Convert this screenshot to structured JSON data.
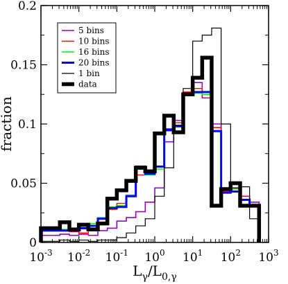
{
  "chart_data": {
    "type": "line",
    "subtype": "step-histogram",
    "xscale": "log",
    "xlim": [
      0.001,
      1000
    ],
    "ylim": [
      0,
      0.2
    ],
    "grid": false,
    "legend_position": "top-left",
    "xlabel": {
      "main": "L",
      "sub1": "γ",
      "mid": "/L",
      "sub2": "0,γ"
    },
    "ylabel": "fraction",
    "xticks": [
      {
        "value": 0.001,
        "base": "10",
        "exp": "-3"
      },
      {
        "value": 0.01,
        "base": "10",
        "exp": "-2"
      },
      {
        "value": 0.1,
        "base": "10",
        "exp": "-1"
      },
      {
        "value": 1,
        "base": "10",
        "exp": "0"
      },
      {
        "value": 10,
        "base": "10",
        "exp": "1"
      },
      {
        "value": 100,
        "base": "10",
        "exp": "2"
      },
      {
        "value": 1000,
        "base": "10",
        "exp": "3"
      }
    ],
    "yticks": [
      {
        "value": 0,
        "label": "0"
      },
      {
        "value": 0.05,
        "label": "0.05"
      },
      {
        "value": 0.1,
        "label": "0.1"
      },
      {
        "value": 0.15,
        "label": "0.15"
      },
      {
        "value": 0.2,
        "label": "0.2"
      }
    ],
    "bin_edges": [
      0.001,
      0.00178,
      0.00316,
      0.00562,
      0.01,
      0.0178,
      0.0316,
      0.0562,
      0.1,
      0.178,
      0.316,
      0.562,
      1,
      1.78,
      3.16,
      5.62,
      10,
      17.8,
      31.6,
      56.2,
      100,
      178,
      316,
      562
    ],
    "series": [
      {
        "name": "5 bins",
        "color": "#9400d3",
        "width": 1.6,
        "values": [
          0.006,
          0.006,
          0.007,
          0.006,
          0.007,
          0.006,
          0.01,
          0.012,
          0.018,
          0.021,
          0.026,
          0.034,
          0.046,
          0.085,
          0.103,
          0.125,
          0.135,
          0.122,
          0.1,
          0.044,
          0.046,
          0.039,
          0.034
        ]
      },
      {
        "name": "10 bins",
        "color": "#ff0000",
        "width": 1.4,
        "values": [
          0.011,
          0.01,
          0.011,
          0.009,
          0.008,
          0.014,
          0.02,
          0.028,
          0.033,
          0.04,
          0.057,
          0.058,
          0.064,
          0.096,
          0.101,
          0.127,
          0.13,
          0.127,
          0.097,
          0.043,
          0.043,
          0.039,
          0.032
        ]
      },
      {
        "name": "16 bins",
        "color": "#00ee00",
        "width": 1.4,
        "values": [
          0.011,
          0.011,
          0.011,
          0.012,
          0.013,
          0.016,
          0.021,
          0.03,
          0.031,
          0.04,
          0.062,
          0.057,
          0.062,
          0.094,
          0.099,
          0.124,
          0.126,
          0.125,
          0.094,
          0.044,
          0.045,
          0.036,
          0.032
        ]
      },
      {
        "name": "20 bins",
        "color": "#0000ff",
        "width": 3,
        "values": [
          0.01,
          0.01,
          0.01,
          0.01,
          0.012,
          0.014,
          0.02,
          0.029,
          0.03,
          0.039,
          0.064,
          0.058,
          0.064,
          0.095,
          0.098,
          0.126,
          0.127,
          0.127,
          0.094,
          0.042,
          0.043,
          0.036,
          0.031
        ]
      },
      {
        "name": "1 bin",
        "color": "#000000",
        "width": 1.2,
        "values": [
          0.001,
          0.001,
          0.002,
          0.001,
          0.002,
          0.001,
          0.002,
          0.002,
          0.004,
          0.008,
          0.014,
          0.02,
          0.039,
          0.063,
          0.099,
          0.13,
          0.17,
          0.175,
          0.181,
          0.1,
          0.046,
          0.047,
          0.02
        ]
      },
      {
        "name": "data",
        "color": "#000000",
        "width": 5.5,
        "values": [
          0.012,
          0.012,
          0.017,
          0.011,
          0.015,
          0.011,
          0.016,
          0.037,
          0.044,
          0.052,
          0.063,
          0.06,
          0.092,
          0.107,
          0.093,
          0.125,
          0.139,
          0.156,
          0.031,
          0.045,
          0.05,
          0.031,
          0.031
        ]
      }
    ]
  }
}
